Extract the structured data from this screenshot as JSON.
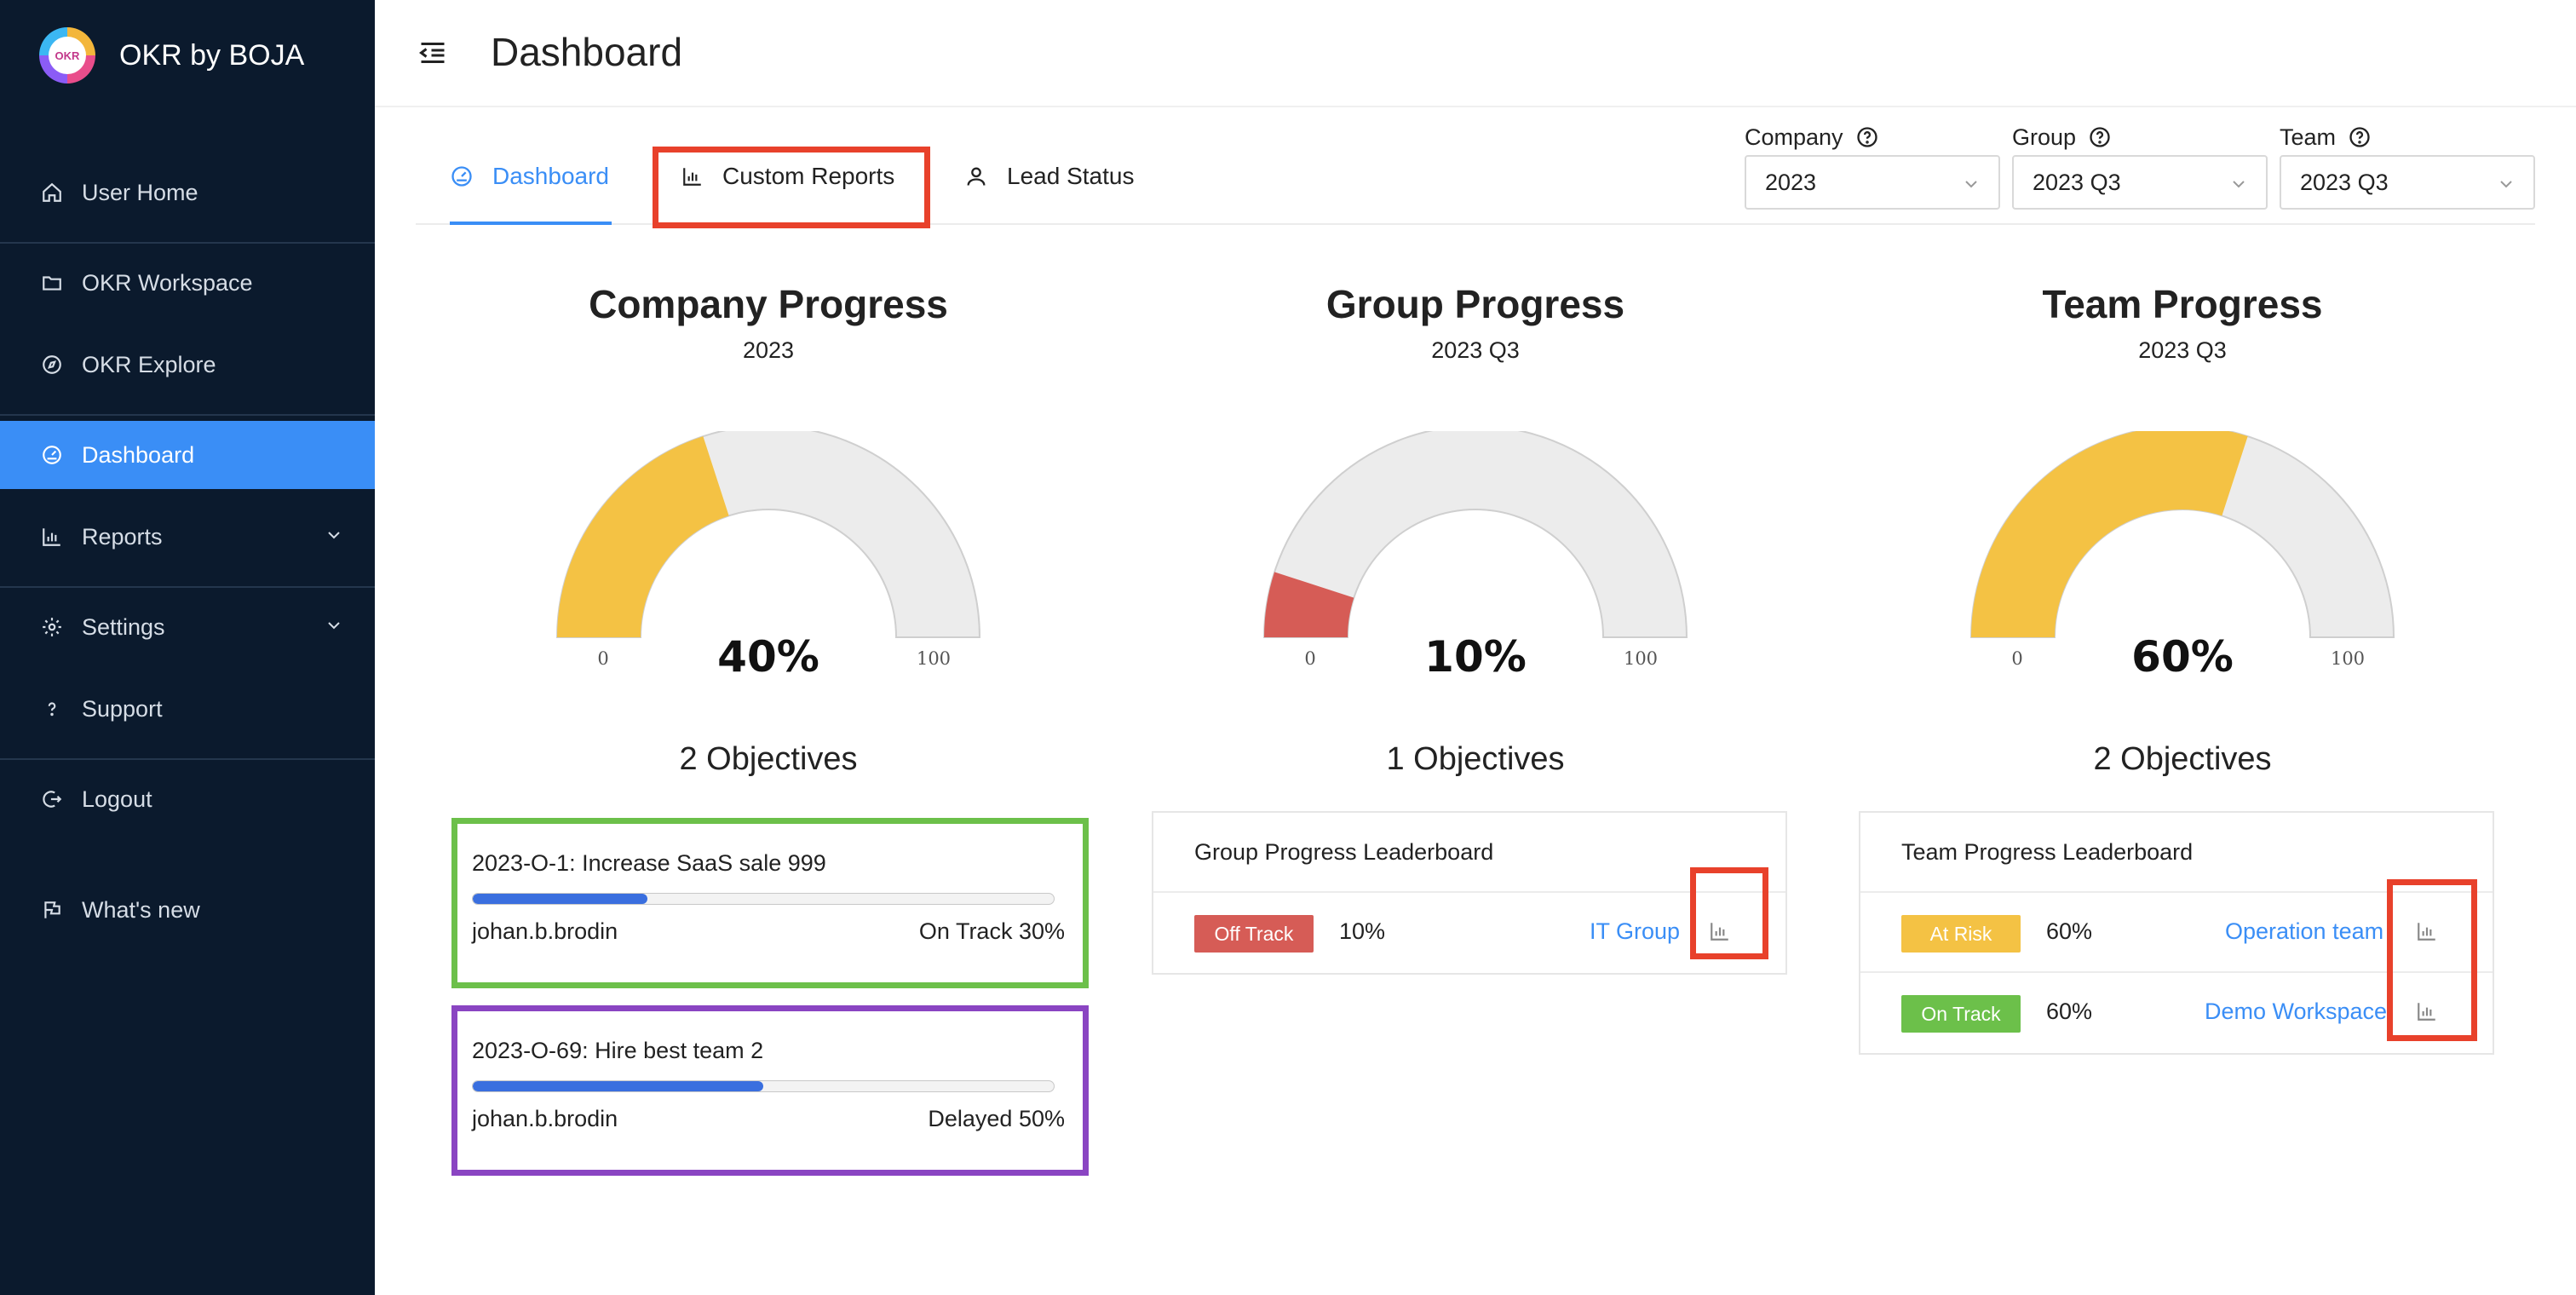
{
  "app": {
    "brand": "OKR by BOJA",
    "logo_text": "OKR"
  },
  "sidebar": {
    "items": [
      {
        "label": "User Home",
        "icon": "home-icon"
      },
      {
        "label": "OKR Workspace",
        "icon": "folder-icon"
      },
      {
        "label": "OKR Explore",
        "icon": "compass-icon"
      },
      {
        "label": "Dashboard",
        "icon": "dashboard-icon",
        "active": true
      },
      {
        "label": "Reports",
        "icon": "bar-chart-icon",
        "expandable": true
      },
      {
        "label": "Settings",
        "icon": "gear-icon",
        "expandable": true
      },
      {
        "label": "Support",
        "icon": "question-icon"
      },
      {
        "label": "Logout",
        "icon": "logout-icon"
      },
      {
        "label": "What's new",
        "icon": "flag-icon"
      }
    ]
  },
  "header": {
    "title": "Dashboard"
  },
  "tabs": [
    {
      "label": "Dashboard",
      "active": true
    },
    {
      "label": "Custom Reports"
    },
    {
      "label": "Lead Status"
    }
  ],
  "filters": {
    "company": {
      "label": "Company",
      "value": "2023"
    },
    "group": {
      "label": "Group",
      "value": "2023 Q3"
    },
    "team": {
      "label": "Team",
      "value": "2023 Q3"
    }
  },
  "panels": {
    "company": {
      "title": "Company Progress",
      "subtitle": "2023",
      "value": 40,
      "value_label": "40%",
      "min_label": "0",
      "max_label": "100",
      "color": "#f4c244",
      "objectives": "2 Objectives",
      "cards": [
        {
          "title": "2023-O-1: Increase SaaS sale 999",
          "progress": 30,
          "owner": "johan.b.brodin",
          "status": "On Track 30%"
        },
        {
          "title": "2023-O-69: Hire best team 2",
          "progress": 50,
          "owner": "johan.b.brodin",
          "status": "Delayed 50%"
        }
      ]
    },
    "group": {
      "title": "Group Progress",
      "subtitle": "2023 Q3",
      "value": 10,
      "value_label": "10%",
      "min_label": "0",
      "max_label": "100",
      "color": "#d65c56",
      "objectives": "1 Objectives",
      "board_title": "Group Progress Leaderboard",
      "rows": [
        {
          "badge": "Off Track",
          "badge_color": "#d65c56",
          "pct": "10%",
          "link": "IT Group"
        }
      ]
    },
    "team": {
      "title": "Team Progress",
      "subtitle": "2023 Q3",
      "value": 60,
      "value_label": "60%",
      "min_label": "0",
      "max_label": "100",
      "color": "#f4c244",
      "objectives": "2 Objectives",
      "board_title": "Team Progress Leaderboard",
      "rows": [
        {
          "badge": "At Risk",
          "badge_color": "#f4c244",
          "pct": "60%",
          "link": "Operation team"
        },
        {
          "badge": "On Track",
          "badge_color": "#6cc04a",
          "pct": "60%",
          "link": "Demo Workspace"
        }
      ]
    }
  },
  "colors": {
    "accent": "#3a8ef6",
    "sidebar_bg": "#0b1a2d",
    "highlight_red": "#e8412b",
    "highlight_green": "#6cc04a",
    "highlight_purple": "#8a45c2"
  }
}
